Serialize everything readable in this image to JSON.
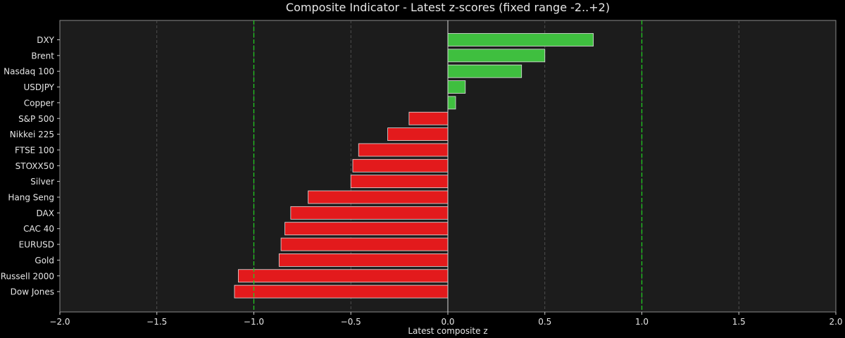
{
  "chart_data": {
    "type": "bar",
    "orientation": "horizontal",
    "title": "Composite Indicator - Latest z-scores (fixed range -2..+2)",
    "xlabel": "Latest composite z",
    "ylabel": "",
    "xlim": [
      -2.0,
      2.0
    ],
    "xticks": [
      -2.0,
      -1.5,
      -1.0,
      -0.5,
      0.0,
      0.5,
      1.0,
      1.5,
      2.0
    ],
    "xtick_labels": [
      "−2.0",
      "−1.5",
      "−1.0",
      "−0.5",
      "0.0",
      "0.5",
      "1.0",
      "1.5",
      "2.0"
    ],
    "threshold_lines": [
      -1.0,
      1.0
    ],
    "grid": "vertical dashed",
    "categories": [
      "DXY",
      "Brent",
      "Nasdaq 100",
      "USDJPY",
      "Copper",
      "S&P 500",
      "Nikkei 225",
      "FTSE 100",
      "STOXX50",
      "Silver",
      "Hang Seng",
      "DAX",
      "CAC 40",
      "EURUSD",
      "Gold",
      "Russell 2000",
      "Dow Jones"
    ],
    "values": [
      0.75,
      0.5,
      0.38,
      0.09,
      0.04,
      -0.2,
      -0.31,
      -0.46,
      -0.49,
      -0.5,
      -0.72,
      -0.81,
      -0.84,
      -0.86,
      -0.87,
      -1.08,
      -1.1
    ],
    "colors": {
      "positive": "#3fbf3f",
      "negative": "#e31a1c",
      "threshold": "#22c922",
      "plot_bg": "#1c1c1c",
      "page_bg": "#000000"
    }
  }
}
